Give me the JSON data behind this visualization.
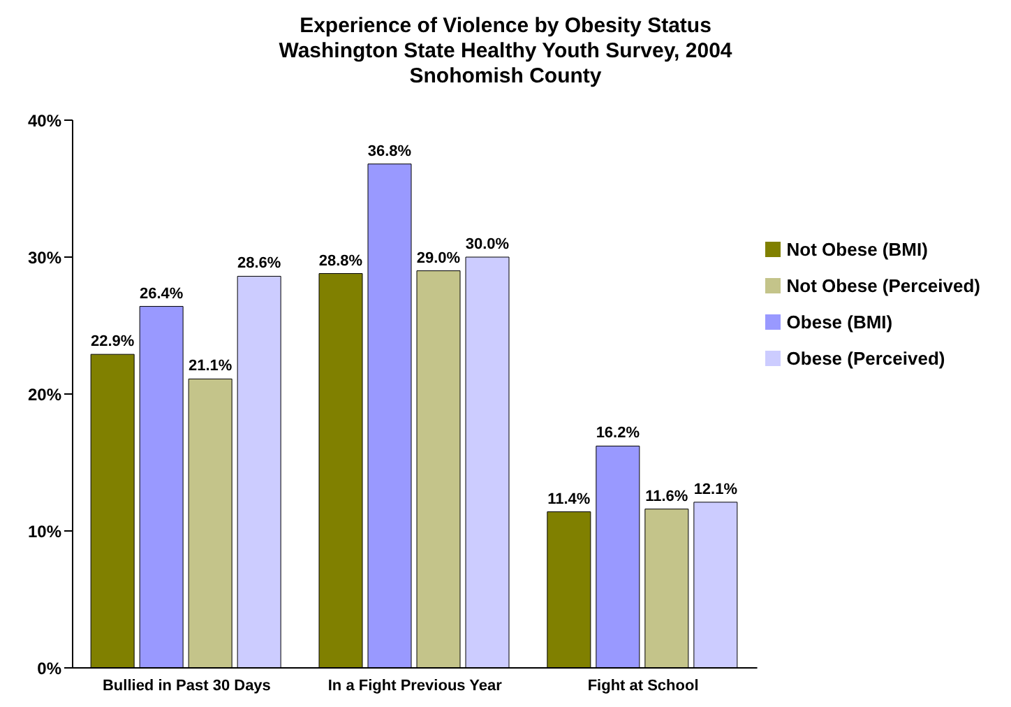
{
  "chart_data": {
    "type": "bar",
    "title": "Experience of Violence by Obesity Status\nWashington State Healthy Youth Survey, 2004\nSnohomish County",
    "categories": [
      "Bullied in Past 30 Days",
      "In a Fight Previous Year",
      "Fight at School"
    ],
    "series": [
      {
        "name": "Not Obese (BMI)",
        "color": "#808000",
        "values": [
          22.9,
          28.8,
          11.4
        ],
        "value_labels": [
          "22.9%",
          "28.8%",
          "11.4%"
        ]
      },
      {
        "name": "Obese (BMI)",
        "color": "#9999ff",
        "values": [
          26.4,
          36.8,
          16.2
        ],
        "value_labels": [
          "26.4%",
          "36.8%",
          "16.2%"
        ]
      },
      {
        "name": "Not Obese (Perceived)",
        "color": "#c4c48a",
        "values": [
          21.1,
          29.0,
          11.6
        ],
        "value_labels": [
          "21.1%",
          "29.0%",
          "11.6%"
        ]
      },
      {
        "name": "Obese (Perceived)",
        "color": "#ccccff",
        "values": [
          28.6,
          30.0,
          12.1
        ],
        "value_labels": [
          "28.6%",
          "30.0%",
          "12.1%"
        ]
      }
    ],
    "ylim": [
      0,
      40
    ],
    "yticks": [
      {
        "value": 0,
        "label": "0%"
      },
      {
        "value": 10,
        "label": "10%"
      },
      {
        "value": 20,
        "label": "20%"
      },
      {
        "value": 30,
        "label": "30%"
      },
      {
        "value": 40,
        "label": "40%"
      }
    ],
    "grid": false,
    "legend": "top right"
  }
}
